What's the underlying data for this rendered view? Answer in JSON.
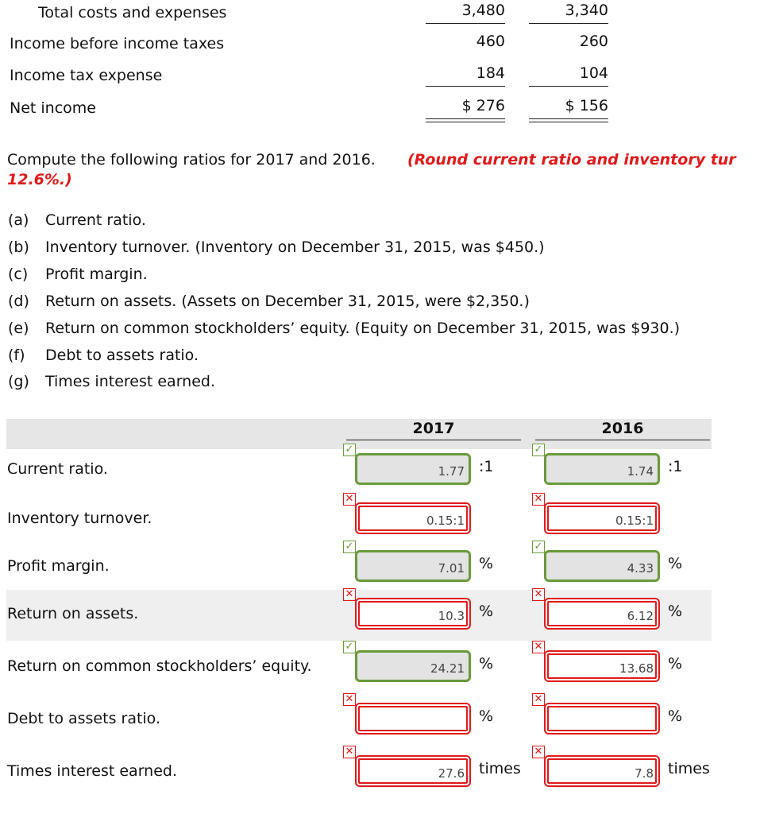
{
  "income_statement": {
    "rows": [
      {
        "label": "Total costs and expenses",
        "v2017": "3,480",
        "v2016": "3,340",
        "rule": "single"
      },
      {
        "label": "Income before income taxes",
        "v2017": "460",
        "v2016": "260"
      },
      {
        "label": "Income tax expense",
        "v2017": "184",
        "v2016": "104",
        "rule": "single"
      },
      {
        "label": "Net income",
        "v2017": "$ 276",
        "v2016": "$ 156",
        "rule": "double"
      }
    ]
  },
  "instructions": {
    "text": "Compute the following ratios for 2017 and 2016.",
    "note": "(Round current ratio and inventory tur",
    "note_cont": "12.6%.)"
  },
  "items": [
    {
      "letter": "(a)",
      "text": "Current ratio."
    },
    {
      "letter": "(b)",
      "text": "Inventory turnover. (Inventory on December 31, 2015, was $450.)"
    },
    {
      "letter": "(c)",
      "text": "Profit margin."
    },
    {
      "letter": "(d)",
      "text": "Return on assets. (Assets on December 31, 2015, were $2,350.)"
    },
    {
      "letter": "(e)",
      "text": "Return on common stockholders’ equity. (Equity on December 31, 2015, was $930.)"
    },
    {
      "letter": "(f)",
      "text": "Debt to assets ratio."
    },
    {
      "letter": "(g)",
      "text": "Times interest earned."
    }
  ],
  "answers": {
    "headers": [
      "2017",
      "2016"
    ],
    "rows": [
      {
        "label": "Current ratio.",
        "cells": [
          {
            "value": "1.77",
            "unit": ":1",
            "status": "correct"
          },
          {
            "value": "1.74",
            "unit": ":1",
            "status": "correct"
          }
        ]
      },
      {
        "label": "Inventory turnover.",
        "cells": [
          {
            "value": "0.15:1",
            "status": "incorrect"
          },
          {
            "value": "0.15:1",
            "status": "incorrect"
          }
        ]
      },
      {
        "label": "Profit margin.",
        "cells": [
          {
            "value": "7.01",
            "unit": "%",
            "status": "correct"
          },
          {
            "value": "4.33",
            "unit": "%",
            "status": "correct"
          }
        ]
      },
      {
        "label": "Return on assets.",
        "shaded": true,
        "cells": [
          {
            "value": "10.3",
            "unit": "%",
            "status": "incorrect"
          },
          {
            "value": "6.12",
            "unit": "%",
            "status": "incorrect"
          }
        ]
      },
      {
        "label": "Return on common stockholders’ equity.",
        "cells": [
          {
            "value": "24.21",
            "unit": "%",
            "status": "correct"
          },
          {
            "value": "13.68",
            "unit": "%",
            "status": "incorrect"
          }
        ]
      },
      {
        "label": "Debt to assets ratio.",
        "cells": [
          {
            "unit": "%",
            "status": "incorrect"
          },
          {
            "unit": "%",
            "status": "incorrect"
          }
        ]
      },
      {
        "label": "Times interest earned.",
        "cells": [
          {
            "value": "27.6",
            "unit": "times",
            "status": "incorrect"
          },
          {
            "value": "7.8",
            "unit": "times",
            "status": "incorrect"
          }
        ]
      }
    ]
  }
}
